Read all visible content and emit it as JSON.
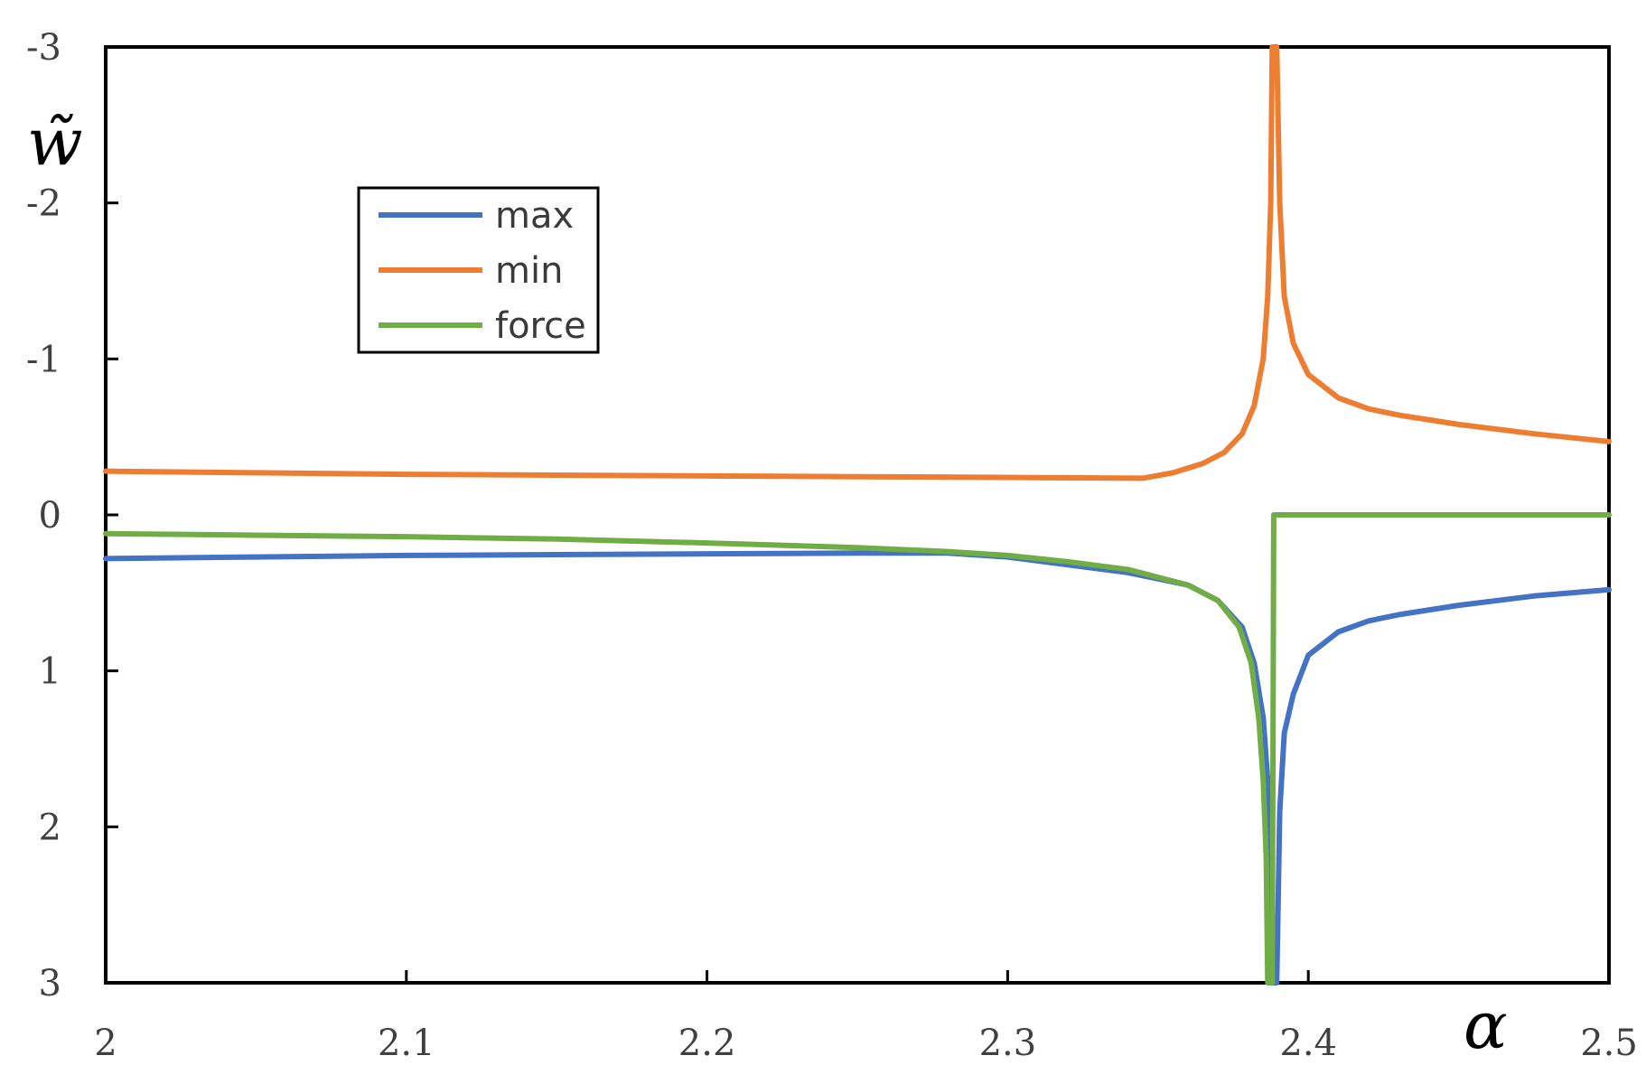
{
  "chart_data": {
    "type": "line",
    "title": "",
    "xlabel": "α",
    "ylabel": "w̃",
    "xlim": [
      2,
      2.5
    ],
    "ylim": [
      -3,
      3
    ],
    "y_inverted": true,
    "xticks": [
      2,
      2.1,
      2.2,
      2.3,
      2.4,
      2.5
    ],
    "xtick_labels": [
      "2",
      "2.1",
      "2.2",
      "2.3",
      "2.4",
      "2.5"
    ],
    "yticks": [
      -3,
      -2,
      -1,
      0,
      1,
      2,
      3
    ],
    "ytick_labels": [
      "-3",
      "-2",
      "-1",
      "0",
      "1",
      "2",
      "3"
    ],
    "grid": false,
    "legend_position": "upper-left",
    "series": [
      {
        "name": "max",
        "color": "#4472C4",
        "points": [
          [
            2.0,
            0.28
          ],
          [
            2.05,
            0.27
          ],
          [
            2.1,
            0.26
          ],
          [
            2.15,
            0.255
          ],
          [
            2.2,
            0.25
          ],
          [
            2.25,
            0.245
          ],
          [
            2.28,
            0.245
          ],
          [
            2.3,
            0.27
          ],
          [
            2.32,
            0.32
          ],
          [
            2.34,
            0.37
          ],
          [
            2.36,
            0.45
          ],
          [
            2.37,
            0.55
          ],
          [
            2.378,
            0.72
          ],
          [
            2.382,
            0.95
          ],
          [
            2.385,
            1.3
          ],
          [
            2.3865,
            1.7
          ],
          [
            2.3875,
            2.3
          ],
          [
            2.388,
            3.0
          ],
          [
            2.3895,
            3.0
          ],
          [
            2.3905,
            1.9
          ],
          [
            2.392,
            1.4
          ],
          [
            2.395,
            1.15
          ],
          [
            2.4,
            0.9
          ],
          [
            2.41,
            0.75
          ],
          [
            2.42,
            0.68
          ],
          [
            2.43,
            0.64
          ],
          [
            2.45,
            0.58
          ],
          [
            2.475,
            0.52
          ],
          [
            2.5,
            0.48
          ]
        ]
      },
      {
        "name": "min",
        "color": "#ED7D31",
        "points": [
          [
            2.0,
            -0.28
          ],
          [
            2.05,
            -0.27
          ],
          [
            2.1,
            -0.26
          ],
          [
            2.15,
            -0.255
          ],
          [
            2.2,
            -0.25
          ],
          [
            2.25,
            -0.245
          ],
          [
            2.3,
            -0.24
          ],
          [
            2.345,
            -0.235
          ],
          [
            2.355,
            -0.27
          ],
          [
            2.365,
            -0.33
          ],
          [
            2.372,
            -0.4
          ],
          [
            2.378,
            -0.52
          ],
          [
            2.382,
            -0.7
          ],
          [
            2.385,
            -1.0
          ],
          [
            2.3865,
            -1.4
          ],
          [
            2.3875,
            -2.0
          ],
          [
            2.388,
            -3.0
          ],
          [
            2.3895,
            -3.0
          ],
          [
            2.3905,
            -2.0
          ],
          [
            2.392,
            -1.4
          ],
          [
            2.395,
            -1.1
          ],
          [
            2.4,
            -0.9
          ],
          [
            2.41,
            -0.75
          ],
          [
            2.42,
            -0.68
          ],
          [
            2.43,
            -0.64
          ],
          [
            2.45,
            -0.58
          ],
          [
            2.475,
            -0.52
          ],
          [
            2.5,
            -0.47
          ]
        ]
      },
      {
        "name": "force",
        "color": "#70AD47",
        "points": [
          [
            2.0,
            0.12
          ],
          [
            2.05,
            0.13
          ],
          [
            2.1,
            0.14
          ],
          [
            2.15,
            0.155
          ],
          [
            2.2,
            0.18
          ],
          [
            2.25,
            0.21
          ],
          [
            2.28,
            0.235
          ],
          [
            2.3,
            0.26
          ],
          [
            2.32,
            0.3
          ],
          [
            2.34,
            0.35
          ],
          [
            2.36,
            0.45
          ],
          [
            2.37,
            0.55
          ],
          [
            2.377,
            0.72
          ],
          [
            2.381,
            0.95
          ],
          [
            2.3835,
            1.3
          ],
          [
            2.385,
            1.7
          ],
          [
            2.386,
            2.2
          ],
          [
            2.3865,
            3.0
          ],
          [
            2.388,
            3.0
          ],
          [
            2.3885,
            0.0
          ],
          [
            2.4,
            0.0
          ],
          [
            2.45,
            0.0
          ],
          [
            2.5,
            0.0
          ]
        ]
      }
    ]
  }
}
